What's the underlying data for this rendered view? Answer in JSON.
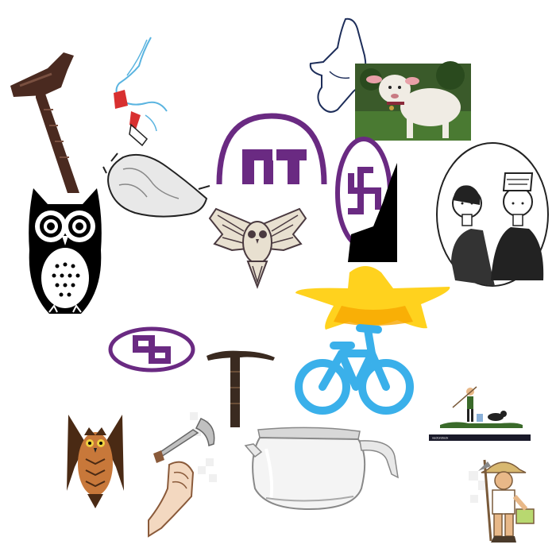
{
  "canvas": {
    "background": "#ffffff"
  },
  "items": [
    {
      "name": "walking-cane-icon",
      "colors": [
        "#4a2a20",
        "#7a5040"
      ]
    },
    {
      "name": "hand-sketch-icon",
      "colors": [
        "#5ab4e0",
        "#d83030"
      ]
    },
    {
      "name": "boot-outline-icon",
      "colors": [
        "#1e2e5a"
      ]
    },
    {
      "name": "lamb-photo-icon",
      "colors": [
        "#f0ece4",
        "#3a5a2a",
        "#e8a0a8"
      ]
    },
    {
      "name": "conch-shell-icon",
      "colors": [
        "#e8e8e8",
        "#222222"
      ]
    },
    {
      "name": "arch-symbol-icon",
      "colors": [
        "#6a2a82"
      ]
    },
    {
      "name": "swastika-oval-vertical-icon",
      "colors": [
        "#6a2a82",
        "#000000"
      ]
    },
    {
      "name": "couple-portrait-icon",
      "colors": [
        "#222222"
      ]
    },
    {
      "name": "black-owl-icon",
      "colors": [
        "#000000",
        "#ffffff"
      ]
    },
    {
      "name": "flying-owl-icon",
      "colors": [
        "#4a3a40",
        "#e8e0d0"
      ]
    },
    {
      "name": "yellow-star-icon",
      "colors": [
        "#ffd21e",
        "#f7a600"
      ]
    },
    {
      "name": "swastika-oval-horizontal-icon",
      "colors": [
        "#6a2a82"
      ]
    },
    {
      "name": "cane-handle-icon",
      "colors": [
        "#3a2a20"
      ]
    },
    {
      "name": "bicycle-icon",
      "colors": [
        "#3ab0ea"
      ]
    },
    {
      "name": "farmer-dog-icon",
      "colors": [
        "#3a6a2a",
        "#000000"
      ]
    },
    {
      "name": "brown-owl-icon",
      "colors": [
        "#4a2a14",
        "#c8783a"
      ]
    },
    {
      "name": "trumpet-hand-icon",
      "colors": [
        "#c0c0c0",
        "#8a5a3a"
      ]
    },
    {
      "name": "glass-teapot-icon",
      "colors": [
        "#d8d8d8",
        "#888888"
      ]
    },
    {
      "name": "farmer-cartoon-icon",
      "colors": [
        "#e8b888",
        "#b8d870",
        "#7a5a3a"
      ]
    }
  ],
  "watermark": {
    "text": "vectorstock"
  }
}
